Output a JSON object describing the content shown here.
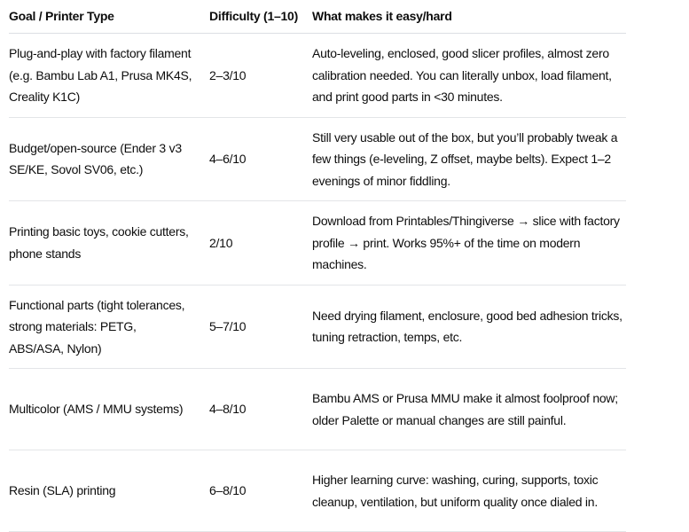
{
  "table": {
    "headers": [
      "Goal / Printer Type",
      "Difficulty (1–10)",
      "What makes it easy/hard"
    ],
    "rows": [
      {
        "goal": "Plug-and-play with factory filament (e.g. Bambu Lab A1, Prusa MK4S, Creality K1C)",
        "difficulty": "2–3/10",
        "notes": "Auto-leveling, enclosed, good slicer profiles, almost zero calibration needed. You can literally unbox, load filament, and print good parts in <30 minutes."
      },
      {
        "goal": "Budget/open-source (Ender 3 v3 SE/KE, Sovol SV06, etc.)",
        "difficulty": "4–6/10",
        "notes": "Still very usable out of the box, but you’ll probably tweak a few things (e-leveling, Z offset, maybe belts). Expect 1–2 evenings of minor fiddling."
      },
      {
        "goal": "Printing basic toys, cookie cutters, phone stands",
        "difficulty": "2/10",
        "notes": "Download from Printables/Thingiverse → slice with factory profile → print. Works 95%+ of the time on modern machines."
      },
      {
        "goal": "Functional parts (tight tolerances, strong materials: PETG, ABS/ASA, Nylon)",
        "difficulty": "5–7/10",
        "notes": "Need drying filament, enclosure, good bed adhesion tricks, tuning retraction, temps, etc."
      },
      {
        "goal": "Multicolor (AMS / MMU systems)",
        "difficulty": "4–8/10",
        "notes": "Bambu AMS or Prusa MMU make it almost foolproof now; older Palette or manual changes are still painful."
      },
      {
        "goal": "Resin (SLA) printing",
        "difficulty": "6–8/10",
        "notes": "Higher learning curve: washing, curing, supports, toxic cleanup, ventilation, but uniform quality once dialed in."
      }
    ]
  }
}
